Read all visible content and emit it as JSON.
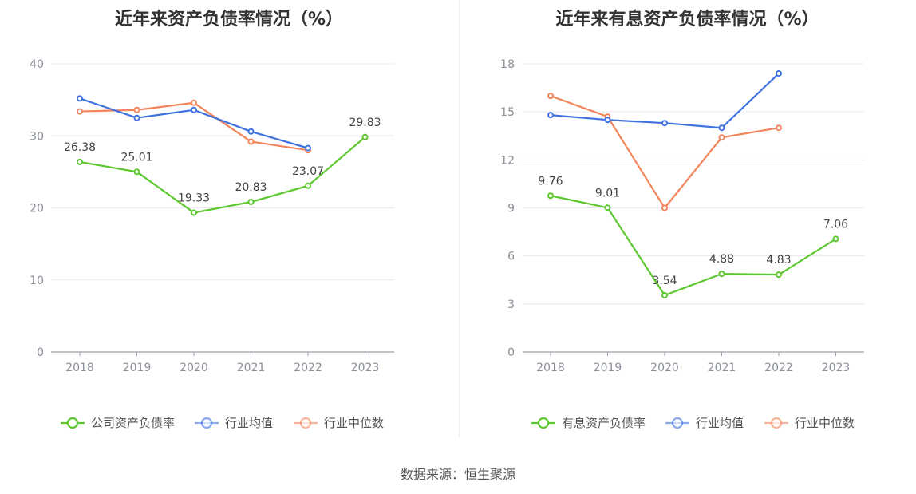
{
  "chart_data": [
    {
      "type": "line",
      "title": "近年来资产负债率情况（%）",
      "categories": [
        "2018",
        "2019",
        "2020",
        "2021",
        "2022",
        "2023"
      ],
      "ylim": [
        0,
        40
      ],
      "yticks": [
        0,
        10,
        20,
        30,
        40
      ],
      "grid": true,
      "legend_position": "bottom",
      "series": [
        {
          "name": "公司资产负债率",
          "color": "#5cc72f",
          "values": [
            26.38,
            25.01,
            19.33,
            20.83,
            23.07,
            29.83
          ],
          "show_labels": true
        },
        {
          "name": "行业均值",
          "color": "#3f72e0",
          "values": [
            35.2,
            32.5,
            33.6,
            30.6,
            28.3,
            null
          ],
          "show_labels": false
        },
        {
          "name": "行业中位数",
          "color": "#f4845a",
          "values": [
            33.4,
            33.6,
            34.6,
            29.2,
            28.0,
            null
          ],
          "show_labels": false
        }
      ]
    },
    {
      "type": "line",
      "title": "近年来有息资产负债率情况（%）",
      "categories": [
        "2018",
        "2019",
        "2020",
        "2021",
        "2022",
        "2023"
      ],
      "ylim": [
        0,
        18
      ],
      "yticks": [
        0,
        3,
        6,
        9,
        12,
        15,
        18
      ],
      "grid": true,
      "legend_position": "bottom",
      "series": [
        {
          "name": "有息资产负债率",
          "color": "#5cc72f",
          "values": [
            9.76,
            9.01,
            3.54,
            4.88,
            4.83,
            7.06
          ],
          "show_labels": true
        },
        {
          "name": "行业均值",
          "color": "#3f72e0",
          "values": [
            14.8,
            14.5,
            14.3,
            14.0,
            17.4,
            null
          ],
          "show_labels": false
        },
        {
          "name": "行业中位数",
          "color": "#f4845a",
          "values": [
            16.0,
            14.7,
            9.0,
            13.4,
            14.0,
            null
          ],
          "show_labels": false
        }
      ]
    }
  ],
  "source_text": "数据来源：恒生聚源"
}
